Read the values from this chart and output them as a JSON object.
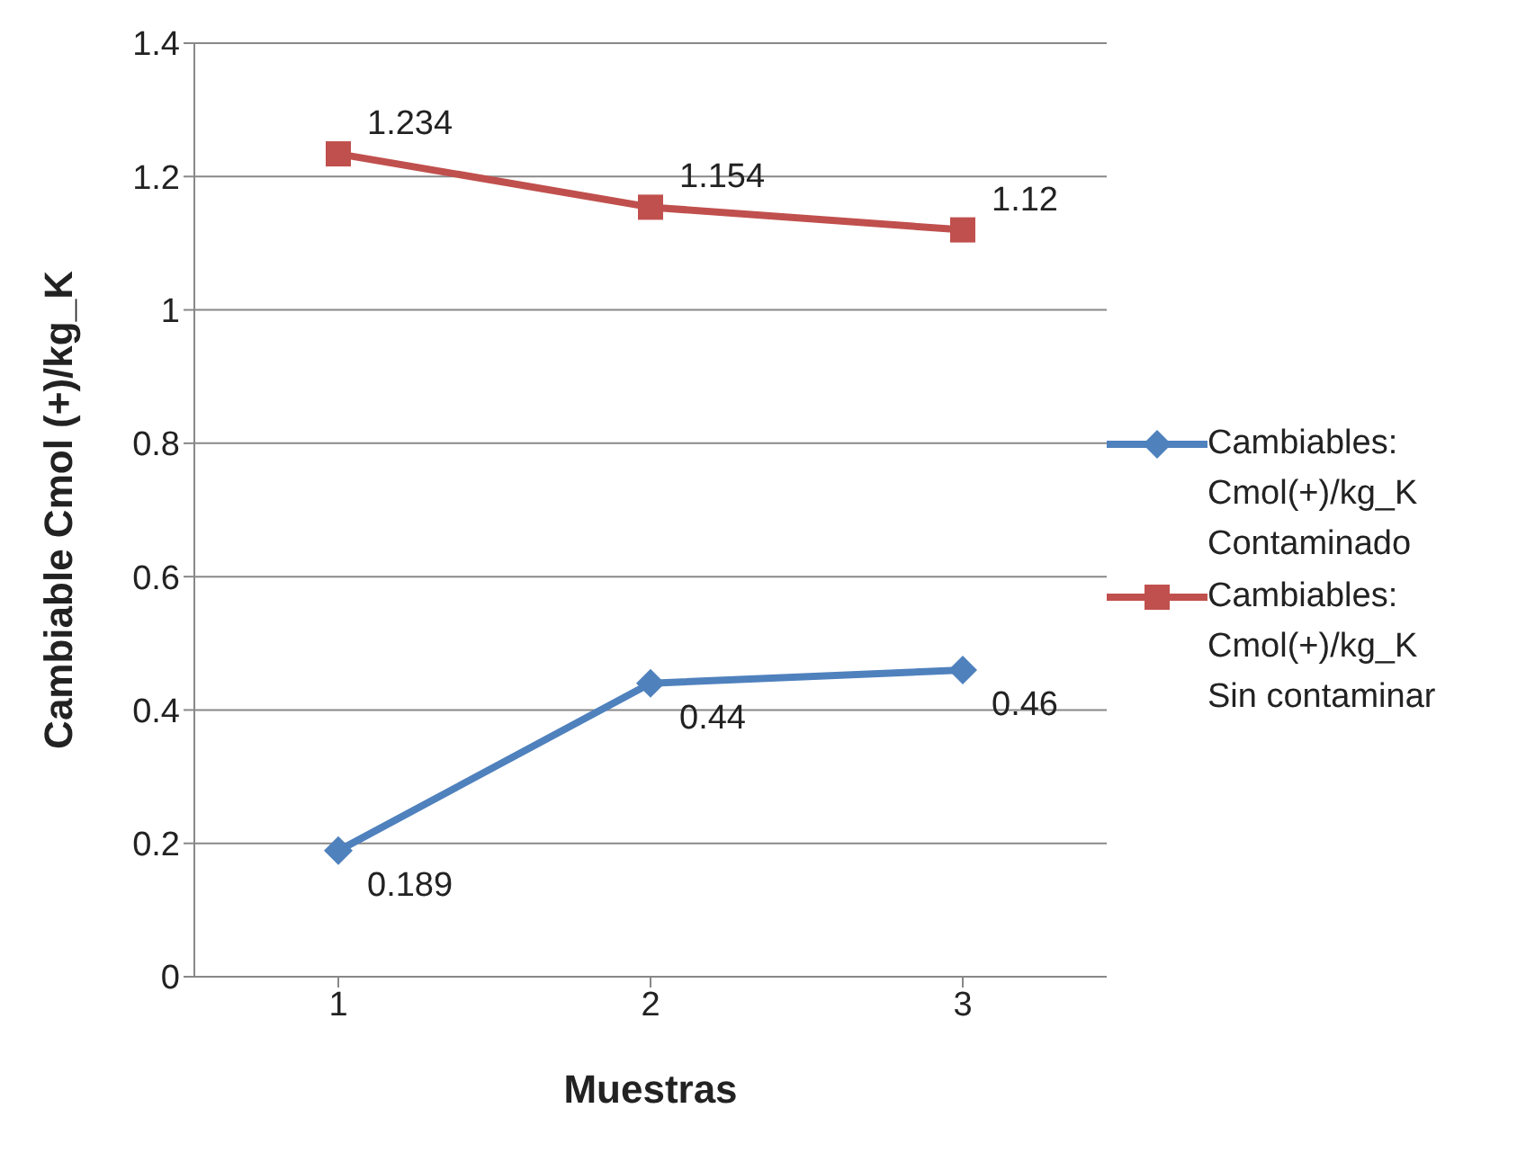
{
  "chart_data": {
    "type": "line",
    "xlabel": "Muestras",
    "ylabel": "Cambiable Cmol (+)/kg_K",
    "categories": [
      "1",
      "2",
      "3"
    ],
    "series": [
      {
        "name": "Cambiables: Cmol(+)/kg_K Contaminado",
        "color": "#4f81bd",
        "values": [
          0.189,
          0.44,
          0.46
        ],
        "marker": "diamond"
      },
      {
        "name": "Cambiables: Cmol(+)/kg_K Sin contaminar",
        "color": "#c0504d",
        "values": [
          1.234,
          1.154,
          1.12
        ],
        "marker": "square"
      }
    ],
    "ylim": [
      0,
      1.4
    ],
    "yticks": [
      0,
      0.2,
      0.4,
      0.6,
      0.8,
      1,
      1.2,
      1.4
    ],
    "grid": "y",
    "legend": "right",
    "data_labels": true,
    "line_style": "solid"
  }
}
